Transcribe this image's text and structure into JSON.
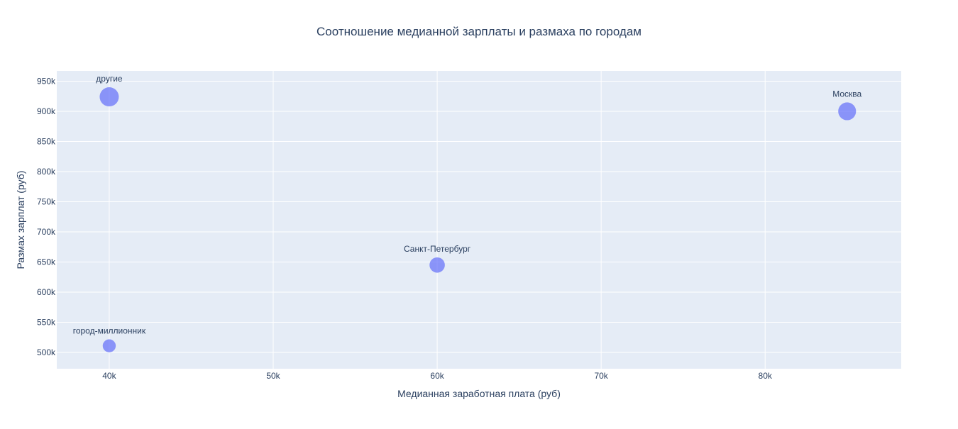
{
  "chart_data": {
    "type": "scatter",
    "title": "Соотношение медианной зарплаты и размаха по городам",
    "xlabel": "Медианная заработная плата (руб)",
    "ylabel": "Размах зарплат (руб)",
    "xlim": [
      36800,
      88300
    ],
    "ylim": [
      473000,
      967000
    ],
    "x_ticks": [
      40000,
      50000,
      60000,
      70000,
      80000
    ],
    "x_tick_labels": [
      "40k",
      "50k",
      "60k",
      "70k",
      "80k"
    ],
    "y_ticks": [
      500000,
      550000,
      600000,
      650000,
      700000,
      750000,
      800000,
      850000,
      900000,
      950000
    ],
    "y_tick_labels": [
      "500k",
      "550k",
      "600k",
      "650k",
      "700k",
      "750k",
      "800k",
      "850k",
      "900k",
      "950k"
    ],
    "grid": true,
    "points": [
      {
        "label": "другие",
        "x": 40000,
        "y": 924000,
        "size": 1.0
      },
      {
        "label": "Москва",
        "x": 85000,
        "y": 900000,
        "size": 0.93
      },
      {
        "label": "Санкт-Петербург",
        "x": 60000,
        "y": 645000,
        "size": 0.8
      },
      {
        "label": "город-миллионник",
        "x": 40000,
        "y": 511000,
        "size": 0.68
      }
    ],
    "colors": {
      "plot_bg": "#E5ECF6",
      "grid": "#ffffff",
      "marker": "#636EFA",
      "text": "#2a3f5f",
      "tick_text": "#2a3f5f"
    }
  }
}
